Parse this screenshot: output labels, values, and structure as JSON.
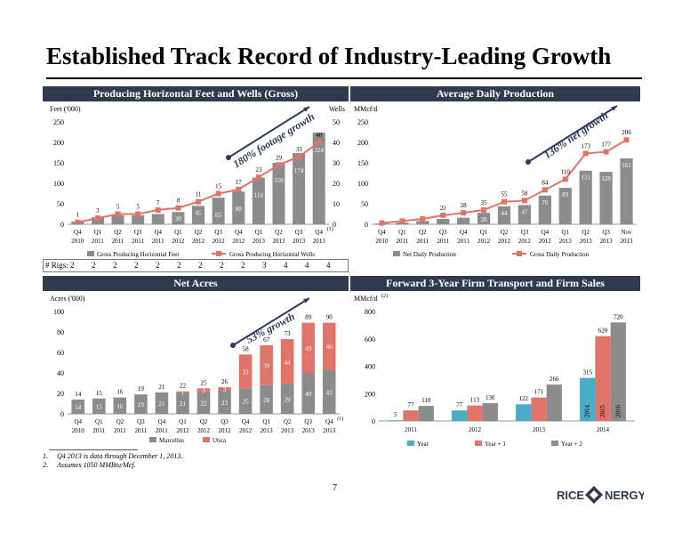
{
  "page": {
    "title": "Established Track Record of Industry-Leading Growth",
    "page_number": "7",
    "footnotes": [
      {
        "num": "1.",
        "text": "Q4 2013 is data through December 1, 2013."
      },
      {
        "num": "2.",
        "text": "Assumes 1050 MMBtu/Mcf."
      }
    ],
    "logo_text": "RICE ENERGY"
  },
  "rigs": {
    "label": "# Rigs:",
    "values": [
      "2",
      "2",
      "2",
      "2",
      "2",
      "2",
      "2",
      "2",
      "2",
      "3",
      "4",
      "4",
      "4"
    ]
  },
  "chart_data": [
    {
      "id": "horizontal",
      "type": "bar",
      "title": "Producing Horizontal Feet and Wells (Gross)",
      "ylabel": "Feet ('000)",
      "y2label": "Wells",
      "ylim": [
        0,
        250
      ],
      "y2lim": [
        0,
        50
      ],
      "yticks": [
        "0",
        "50",
        "100",
        "150",
        "200",
        "250"
      ],
      "y2ticks": [
        "0",
        "10",
        "20",
        "30",
        "40",
        "50"
      ],
      "categories": [
        [
          "Q4",
          "2010"
        ],
        [
          "Q1",
          "2011"
        ],
        [
          "Q2",
          "2011"
        ],
        [
          "Q3",
          "2011"
        ],
        [
          "Q4",
          "2011"
        ],
        [
          "Q1",
          "2012"
        ],
        [
          "Q2",
          "2012"
        ],
        [
          "Q3",
          "2012"
        ],
        [
          "Q4",
          "2012"
        ],
        [
          "Q1",
          "2013"
        ],
        [
          "Q2",
          "2013"
        ],
        [
          "Q3",
          "2013"
        ],
        [
          "Q4",
          "2013",
          "(1)"
        ]
      ],
      "series": [
        {
          "name": "Gross Producing Horizontal Feet",
          "kind": "bar",
          "color": "#8c8c8c",
          "values": [
            7,
            17,
            22,
            22,
            25,
            30,
            45,
            65,
            80,
            114,
            150,
            174,
            224
          ],
          "labels": [
            "",
            "",
            "",
            "",
            "",
            "30",
            "45",
            "65",
            "80",
            "114",
            "150",
            "174",
            "224"
          ]
        },
        {
          "name": "Gross Producing Horizontal Wells",
          "kind": "line",
          "color": "#e07468",
          "axis": "y2",
          "values": [
            1,
            3,
            5,
            5,
            7,
            8,
            11,
            15,
            17,
            23,
            29,
            33,
            40
          ]
        }
      ],
      "annotation": "180% footage growth"
    },
    {
      "id": "production",
      "type": "bar",
      "title": "Average Daily Production",
      "ylabel": "MMcf/d",
      "ylim": [
        0,
        250
      ],
      "yticks": [
        "0",
        "50",
        "100",
        "150",
        "200",
        "250"
      ],
      "categories": [
        [
          "Q4",
          "2010"
        ],
        [
          "Q1",
          "2011"
        ],
        [
          "Q2",
          "2011"
        ],
        [
          "Q3",
          "2011"
        ],
        [
          "Q4",
          "2011"
        ],
        [
          "Q1",
          "2012"
        ],
        [
          "Q2",
          "2012"
        ],
        [
          "Q3",
          "2012"
        ],
        [
          "Q4",
          "2012"
        ],
        [
          "Q1",
          "2013"
        ],
        [
          "Q2",
          "2013"
        ],
        [
          "Q3",
          "2013"
        ],
        [
          "Nov",
          "2013"
        ]
      ],
      "series": [
        {
          "name": "Net Daily Production",
          "kind": "bar",
          "color": "#8c8c8c",
          "values": [
            2,
            4,
            8,
            13,
            16,
            28,
            44,
            47,
            70,
            89,
            131,
            128,
            161
          ],
          "labels": [
            "",
            "",
            "",
            "",
            "",
            "28",
            "44",
            "47",
            "70",
            "89",
            "131",
            "128",
            "161"
          ]
        },
        {
          "name": "Gross Daily Production",
          "kind": "line",
          "color": "#e07468",
          "values": [
            3,
            8,
            13,
            22,
            28,
            35,
            55,
            58,
            84,
            110,
            173,
            177,
            206
          ]
        }
      ],
      "annotation": "136% net growth"
    },
    {
      "id": "acres",
      "type": "stacked-bar",
      "title": "Net Acres",
      "ylabel": "Acres ('000)",
      "ylim": [
        0,
        100
      ],
      "yticks": [
        "0",
        "20",
        "40",
        "60",
        "80",
        "100"
      ],
      "categories": [
        [
          "Q4",
          "2010"
        ],
        [
          "Q1",
          "2011"
        ],
        [
          "Q2",
          "2011"
        ],
        [
          "Q3",
          "2011"
        ],
        [
          "Q4",
          "2011"
        ],
        [
          "Q1",
          "2012"
        ],
        [
          "Q2",
          "2012"
        ],
        [
          "Q3",
          "2012"
        ],
        [
          "Q4",
          "2012"
        ],
        [
          "Q1",
          "2013"
        ],
        [
          "Q2",
          "2013"
        ],
        [
          "Q3",
          "2013"
        ],
        [
          "Q4",
          "2013",
          "(1)"
        ]
      ],
      "series": [
        {
          "name": "Marcellus",
          "color": "#8c8c8c",
          "values": [
            14,
            15,
            16,
            19,
            21,
            21,
            22,
            23,
            25,
            28,
            29,
            40,
            43
          ]
        },
        {
          "name": "Utica",
          "color": "#e07468",
          "values": [
            0,
            0,
            0,
            0,
            0,
            1,
            3,
            3,
            33,
            39,
            44,
            49,
            46
          ]
        }
      ],
      "inner_labels": {
        "Marcellus": [
          "14",
          "15",
          "16",
          "19",
          "21",
          "21",
          "22",
          "23",
          "25",
          "28",
          "29",
          "40",
          "43"
        ],
        "Utica": [
          "",
          "",
          "",
          "",
          "",
          "1",
          "3",
          "3",
          "33",
          "39",
          "44",
          "49",
          "46"
        ]
      },
      "totals": [
        "14",
        "15",
        "16",
        "19",
        "21",
        "22",
        "25",
        "26",
        "58",
        "67",
        "73",
        "89",
        "90"
      ],
      "annotation": "53% growth"
    },
    {
      "id": "transport",
      "type": "bar",
      "title": "Forward 3-Year Firm Transport and Firm Sales",
      "ylabel": "MMcf/d",
      "ylabel_sup": "(2)",
      "ylim": [
        0,
        800
      ],
      "yticks": [
        "0",
        "200",
        "400",
        "600",
        "800"
      ],
      "categories": [
        "2011",
        "2012",
        "2013",
        "2014"
      ],
      "series": [
        {
          "name": "Year",
          "color": "#4bacc6",
          "values": [
            5,
            77,
            122,
            315
          ]
        },
        {
          "name": "Year + 1",
          "color": "#e07468",
          "values": [
            77,
            113,
            171,
            620
          ]
        },
        {
          "name": "Year + 2",
          "color": "#8c8c8c",
          "values": [
            110,
            130,
            266,
            720
          ]
        }
      ],
      "inside_labels_2014": [
        "2014",
        "2015",
        "2016"
      ]
    }
  ]
}
